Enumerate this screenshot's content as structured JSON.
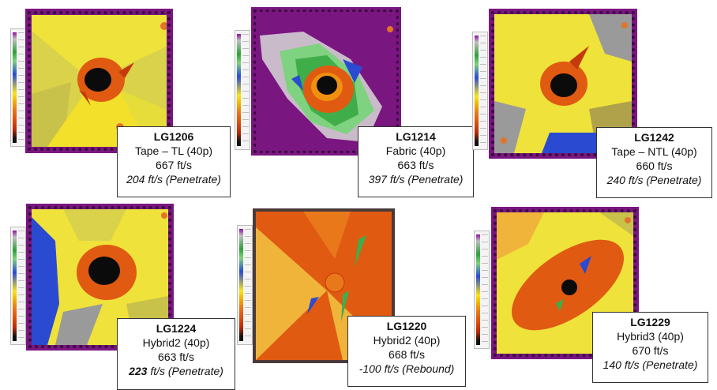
{
  "panels": [
    {
      "id": "LG1206",
      "config": "Tape – TL (40p)",
      "impact": "667 ft/s",
      "residual": "204 ft/s (Penetrate)",
      "residual_bold": false
    },
    {
      "id": "LG1214",
      "config": "Fabric (40p)",
      "impact": "663 ft/s",
      "residual": "397 ft/s (Penetrate)",
      "residual_bold": false
    },
    {
      "id": "LG1242",
      "config": "Tape – NTL (40p)",
      "impact": "660 ft/s",
      "residual": "240 ft/s (Penetrate)",
      "residual_bold": false
    },
    {
      "id": "LG1224",
      "config": "Hybrid2 (40p)",
      "impact": "663 ft/s",
      "residual_num": "223",
      "residual_unit": " ft/s (Penetrate)",
      "residual_bold": true
    },
    {
      "id": "LG1220",
      "config": "Hybrid2 (40p)",
      "impact": "668 ft/s",
      "residual": "-100 ft/s (Rebound)",
      "residual_bold": false
    },
    {
      "id": "LG1229",
      "config": "Hybrid3 (40p)",
      "impact": "670 ft/s",
      "residual": "140 ft/s (Penetrate)",
      "residual_bold": false
    }
  ],
  "colors": {
    "frame": "#7a1680",
    "yellow": "#efe23a",
    "orange": "#e05a12",
    "damage_core": "#0b0b0b",
    "green": "#3fae4a",
    "blue": "#2a4bd1",
    "grey": "#9a9a9a"
  }
}
